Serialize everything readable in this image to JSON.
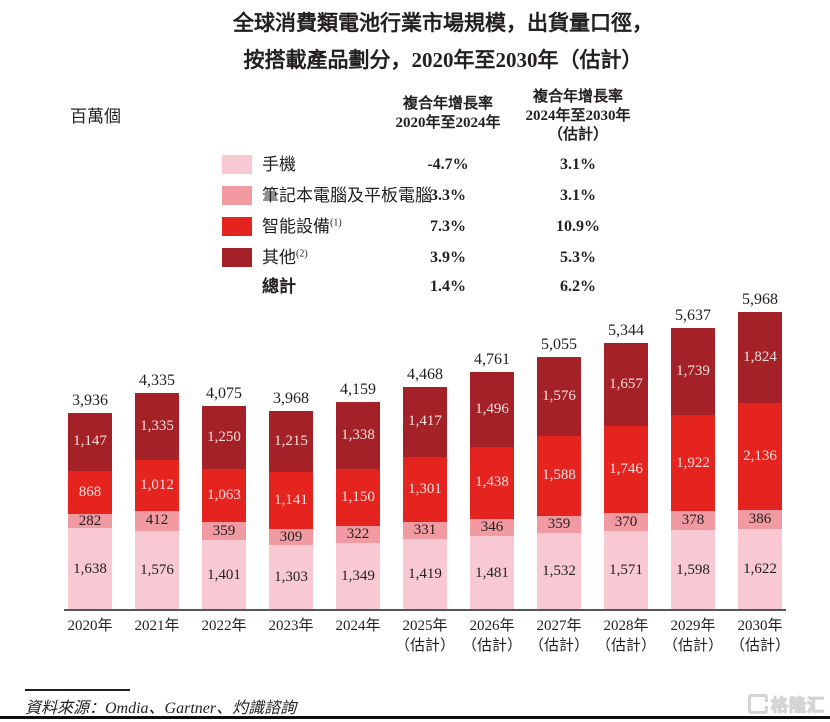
{
  "title": {
    "line1": "全球消費類電池行業市場規模，出貨量口徑，",
    "line2": "按搭載產品劃分，2020年至2030年（估計）"
  },
  "unit_label": "百萬個",
  "cagr_table": {
    "col1_header": [
      "複合年增長率",
      "2020年至2024年"
    ],
    "col2_header": [
      "複合年增長率",
      "2024年至2030年",
      "（估計）"
    ],
    "rows": [
      {
        "label": "手機",
        "footnote": "",
        "color": "#f8c9d2",
        "cagr_2020_2024": "-4.7%",
        "cagr_2024_2030": "3.1%"
      },
      {
        "label": "筆記本電腦及平板電腦",
        "footnote": "",
        "color": "#f19aa1",
        "cagr_2020_2024": "3.3%",
        "cagr_2024_2030": "3.1%"
      },
      {
        "label": "智能設備",
        "footnote": "(1)",
        "color": "#e52420",
        "cagr_2020_2024": "7.3%",
        "cagr_2024_2030": "10.9%"
      },
      {
        "label": "其他",
        "footnote": "(2)",
        "color": "#a42127",
        "cagr_2020_2024": "3.9%",
        "cagr_2024_2030": "5.3%"
      },
      {
        "label": "總計",
        "footnote": "",
        "color": null,
        "cagr_2020_2024": "1.4%",
        "cagr_2024_2030": "6.2%"
      }
    ]
  },
  "chart_data": {
    "type": "bar",
    "subtype": "stacked",
    "title": "全球消費類電池行業市場規模，出貨量口徑，按搭載產品劃分，2020年至2030年（估計）",
    "ylabel": "百萬個",
    "xlabel": "",
    "ylim": [
      0,
      6200
    ],
    "grid": false,
    "legend_position": "top-left",
    "categories": [
      {
        "label": "2020年",
        "sub": ""
      },
      {
        "label": "2021年",
        "sub": ""
      },
      {
        "label": "2022年",
        "sub": ""
      },
      {
        "label": "2023年",
        "sub": ""
      },
      {
        "label": "2024年",
        "sub": ""
      },
      {
        "label": "2025年",
        "sub": "（估計）"
      },
      {
        "label": "2026年",
        "sub": "（估計）"
      },
      {
        "label": "2027年",
        "sub": "（估計）"
      },
      {
        "label": "2028年",
        "sub": "（估計）"
      },
      {
        "label": "2029年",
        "sub": "（估計）"
      },
      {
        "label": "2030年",
        "sub": "（估計）"
      }
    ],
    "series": [
      {
        "key": "phones",
        "name": "手機",
        "color": "#f8c9d2",
        "label_color": "#231f20",
        "values": [
          1638,
          1576,
          1401,
          1303,
          1349,
          1419,
          1481,
          1532,
          1571,
          1598,
          1622
        ]
      },
      {
        "key": "laptops-tablets",
        "name": "筆記本電腦及平板電腦",
        "color": "#f19aa1",
        "label_color": "#231f20",
        "values": [
          282,
          412,
          359,
          309,
          322,
          331,
          346,
          359,
          370,
          378,
          386
        ]
      },
      {
        "key": "smart-devices",
        "name": "智能設備",
        "color": "#e52420",
        "label_color": "#f9dede",
        "values": [
          868,
          1012,
          1063,
          1141,
          1150,
          1301,
          1438,
          1588,
          1746,
          1922,
          2136
        ]
      },
      {
        "key": "others",
        "name": "其他",
        "color": "#a42127",
        "label_color": "#f9dede",
        "values": [
          1147,
          1335,
          1250,
          1215,
          1338,
          1417,
          1496,
          1576,
          1657,
          1739,
          1824
        ]
      }
    ],
    "totals": [
      3936,
      4335,
      4075,
      3968,
      4159,
      4468,
      4761,
      5055,
      5344,
      5637,
      5968
    ]
  },
  "source": {
    "text": "資料來源：Omdia、Gartner、灼識諮詢"
  },
  "watermark": {
    "text": "格隆汇"
  }
}
